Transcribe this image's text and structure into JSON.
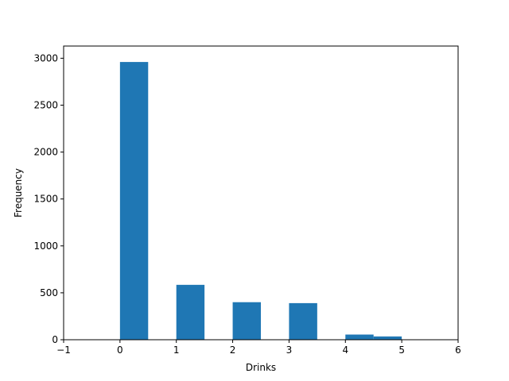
{
  "chart_data": {
    "type": "bar",
    "title": "",
    "xlabel": "Drinks",
    "ylabel": "Frequency",
    "xlim": [
      -1,
      6
    ],
    "ylim": [
      0,
      3130
    ],
    "xticks": [
      -1,
      0,
      1,
      2,
      3,
      4,
      5,
      6
    ],
    "yticks": [
      0,
      500,
      1000,
      1500,
      2000,
      2500,
      3000
    ],
    "xtick_labels": [
      "−1",
      "0",
      "1",
      "2",
      "3",
      "4",
      "5",
      "6"
    ],
    "ytick_labels": [
      "0",
      "500",
      "1000",
      "1500",
      "2000",
      "2500",
      "3000"
    ],
    "grid": false,
    "color": "#1f77b4",
    "bins": [
      {
        "x0": 0.0,
        "x1": 0.5,
        "value": 2960
      },
      {
        "x0": 1.0,
        "x1": 1.5,
        "value": 585
      },
      {
        "x0": 2.0,
        "x1": 2.5,
        "value": 400
      },
      {
        "x0": 3.0,
        "x1": 3.5,
        "value": 390
      },
      {
        "x0": 4.0,
        "x1": 4.5,
        "value": 55
      },
      {
        "x0": 4.5,
        "x1": 5.0,
        "value": 35
      }
    ]
  }
}
